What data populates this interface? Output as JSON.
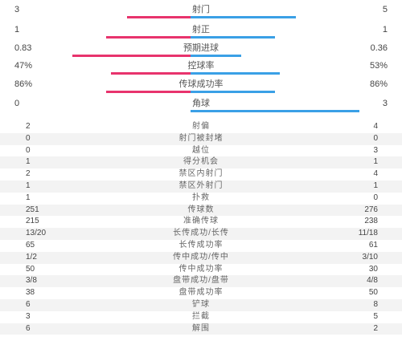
{
  "summary": [
    {
      "label": "射门",
      "left": "3",
      "right": "5",
      "left_frac": 0.375,
      "right_frac": 0.625
    },
    {
      "label": "射正",
      "left": "1",
      "right": "1",
      "left_frac": 0.5,
      "right_frac": 0.5
    },
    {
      "label": "预期进球",
      "left": "0.83",
      "right": "0.36",
      "left_frac": 0.7,
      "right_frac": 0.3
    },
    {
      "label": "控球率",
      "left": "47%",
      "right": "53%",
      "left_frac": 0.47,
      "right_frac": 0.53
    },
    {
      "label": "传球成功率",
      "left": "86%",
      "right": "86%",
      "left_frac": 0.5,
      "right_frac": 0.5
    },
    {
      "label": "角球",
      "left": "0",
      "right": "3",
      "left_frac": 0.0,
      "right_frac": 1.0
    }
  ],
  "colors": {
    "left": "#e8336d",
    "right": "#3aa0e6"
  },
  "details": [
    {
      "label": "射偏",
      "left": "2",
      "right": "4"
    },
    {
      "label": "射门被封堵",
      "left": "0",
      "right": "0"
    },
    {
      "label": "越位",
      "left": "0",
      "right": "3"
    },
    {
      "label": "得分机会",
      "left": "1",
      "right": "1"
    },
    {
      "label": "禁区内射门",
      "left": "2",
      "right": "4"
    },
    {
      "label": "禁区外射门",
      "left": "1",
      "right": "1"
    },
    {
      "label": "扑救",
      "left": "1",
      "right": "0"
    },
    {
      "label": "传球数",
      "left": "251",
      "right": "276"
    },
    {
      "label": "准确传球",
      "left": "215",
      "right": "238"
    },
    {
      "label": "长传成功/长传",
      "left": "13/20",
      "right": "11/18"
    },
    {
      "label": "长传成功率",
      "left": "65",
      "right": "61"
    },
    {
      "label": "传中成功/传中",
      "left": "1/2",
      "right": "3/10"
    },
    {
      "label": "传中成功率",
      "left": "50",
      "right": "30"
    },
    {
      "label": "盘带成功/盘带",
      "left": "3/8",
      "right": "4/8"
    },
    {
      "label": "盘带成功率",
      "left": "38",
      "right": "50"
    },
    {
      "label": "铲球",
      "left": "6",
      "right": "8"
    },
    {
      "label": "拦截",
      "left": "3",
      "right": "5"
    },
    {
      "label": "解围",
      "left": "6",
      "right": "2"
    }
  ]
}
